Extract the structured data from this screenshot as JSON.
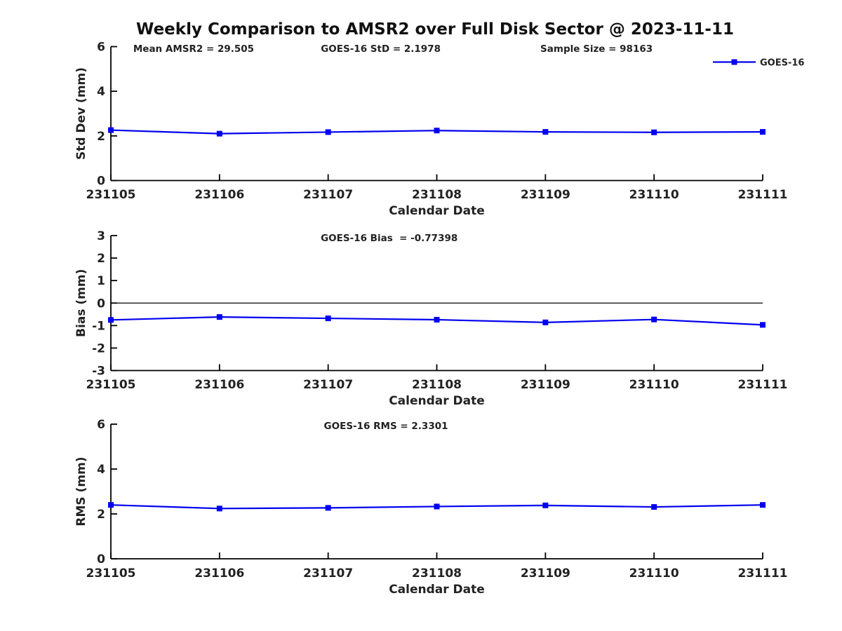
{
  "title": "Weekly Comparison to AMSR2 over Full Disk Sector @ 2023-11-11",
  "colors": {
    "series": "#0000F0",
    "axis": "#000000",
    "text": "#222222",
    "background": "#FFFFFF"
  },
  "legend": {
    "label": "GOES-16",
    "position": "top-right"
  },
  "x_axis": {
    "label": "Calendar Date",
    "categories": [
      "231105",
      "231106",
      "231107",
      "231108",
      "231109",
      "231110",
      "231111"
    ]
  },
  "chart_data": [
    {
      "id": "std-dev",
      "type": "line",
      "title": "",
      "categories": [
        "231105",
        "231106",
        "231107",
        "231108",
        "231109",
        "231110",
        "231111"
      ],
      "series": [
        {
          "name": "GOES-16",
          "values": [
            2.26,
            2.1,
            2.17,
            2.24,
            2.18,
            2.16,
            2.18
          ]
        }
      ],
      "xlabel": "Calendar Date",
      "ylabel": "Std Dev (mm)",
      "ylim": [
        0,
        6
      ],
      "yticks": [
        0,
        2,
        4,
        6
      ],
      "zero_line": false,
      "grid": false,
      "legend_entries": [
        "GOES-16"
      ],
      "annotations": [
        "Mean AMSR2 = 29.505",
        "GOES-16 StD = 2.1978",
        "Sample Size = 98163"
      ]
    },
    {
      "id": "bias",
      "type": "line",
      "title": "",
      "categories": [
        "231105",
        "231106",
        "231107",
        "231108",
        "231109",
        "231110",
        "231111"
      ],
      "series": [
        {
          "name": "GOES-16",
          "values": [
            -0.75,
            -0.62,
            -0.68,
            -0.74,
            -0.86,
            -0.73,
            -0.97
          ]
        }
      ],
      "xlabel": "Calendar Date",
      "ylabel": "Bias (mm)",
      "ylim": [
        -3,
        3
      ],
      "yticks": [
        -3,
        -2,
        -1,
        0,
        1,
        2,
        3
      ],
      "zero_line": true,
      "grid": false,
      "legend_entries": [],
      "annotations": [
        "GOES-16 Bias  = -0.77398"
      ]
    },
    {
      "id": "rms",
      "type": "line",
      "title": "",
      "categories": [
        "231105",
        "231106",
        "231107",
        "231108",
        "231109",
        "231110",
        "231111"
      ],
      "series": [
        {
          "name": "GOES-16",
          "values": [
            2.4,
            2.24,
            2.27,
            2.33,
            2.38,
            2.31,
            2.4
          ]
        }
      ],
      "xlabel": "Calendar Date",
      "ylabel": "RMS (mm)",
      "ylim": [
        0,
        6
      ],
      "yticks": [
        0,
        2,
        4,
        6
      ],
      "zero_line": false,
      "grid": false,
      "legend_entries": [],
      "annotations": [
        "GOES-16 RMS = 2.3301"
      ]
    }
  ]
}
